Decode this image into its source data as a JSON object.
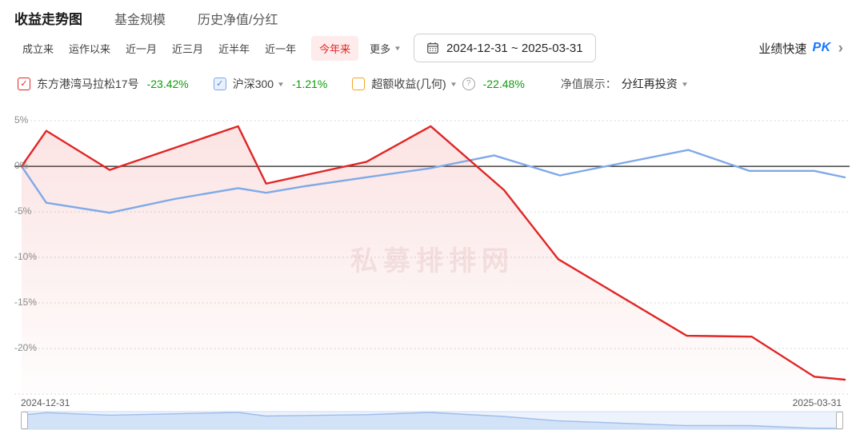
{
  "header": {
    "tabs": [
      {
        "label": "收益走势图",
        "active": true
      },
      {
        "label": "基金规模",
        "active": false
      },
      {
        "label": "历史净值/分红",
        "active": false
      }
    ]
  },
  "toolbar": {
    "periods": [
      {
        "label": "成立来",
        "active": false
      },
      {
        "label": "运作以来",
        "active": false
      },
      {
        "label": "近一月",
        "active": false
      },
      {
        "label": "近三月",
        "active": false
      },
      {
        "label": "近半年",
        "active": false
      },
      {
        "label": "近一年",
        "active": false
      },
      {
        "label": "今年来",
        "active": true
      }
    ],
    "more_label": "更多",
    "date_range": "2024-12-31 ~ 2025-03-31",
    "pk_prefix": "业绩快速",
    "pk_label": "PK",
    "pk_arrow": "›"
  },
  "legend": {
    "items": [
      {
        "label": "东方港湾马拉松17号",
        "value": "-23.42%",
        "checked": true,
        "color": "#e02626",
        "has_dropdown": false,
        "has_help": false
      },
      {
        "label": "沪深300",
        "value": "-1.21%",
        "checked": true,
        "color": "#7fa9e8",
        "has_dropdown": true,
        "has_help": false
      },
      {
        "label": "超额收益(几何)",
        "value": "-22.48%",
        "checked": false,
        "color": "#f5a623",
        "has_dropdown": true,
        "has_help": true
      }
    ],
    "value_color": "#0b9e0b",
    "nav_display_label": "净值展示：",
    "nav_display_value": "分红再投资"
  },
  "watermark": "私募排排网",
  "chart_data": {
    "type": "line",
    "x_axis": {
      "start_label": "2024-12-31",
      "end_label": "2025-03-31"
    },
    "y_ticks": [
      {
        "label": "5%",
        "value": 5
      },
      {
        "label": "0%",
        "value": 0
      },
      {
        "label": "-5%",
        "value": -5
      },
      {
        "label": "-10%",
        "value": -10
      },
      {
        "label": "-15%",
        "value": -15
      },
      {
        "label": "-20%",
        "value": -20
      }
    ],
    "ylim": [
      -25,
      5.8
    ],
    "grid": "dashed horizontal, solid black zero line",
    "legend_position": "top",
    "point_x_format": "fraction of date range 2024-12-31 to 2025-03-31",
    "point_y_format": "cumulative return percent",
    "series": [
      {
        "name": "东方港湾马拉松17号",
        "color": "#e02626",
        "final_value_pct": -23.42,
        "area": true,
        "points": [
          [
            0,
            0
          ],
          [
            0.03,
            3.9
          ],
          [
            0.107,
            -0.4
          ],
          [
            0.263,
            4.4
          ],
          [
            0.297,
            -1.9
          ],
          [
            0.419,
            0.5
          ],
          [
            0.497,
            4.4
          ],
          [
            0.586,
            -2.6
          ],
          [
            0.652,
            -10.2
          ],
          [
            0.808,
            -18.6
          ],
          [
            0.887,
            -18.7
          ],
          [
            0.963,
            -23.1
          ],
          [
            1,
            -23.42
          ]
        ]
      },
      {
        "name": "沪深300",
        "color": "#7fa9e8",
        "final_value_pct": -1.21,
        "area": false,
        "points": [
          [
            0,
            0
          ],
          [
            0.03,
            -4
          ],
          [
            0.107,
            -5.1
          ],
          [
            0.185,
            -3.6
          ],
          [
            0.263,
            -2.4
          ],
          [
            0.297,
            -2.9
          ],
          [
            0.343,
            -2.2
          ],
          [
            0.419,
            -1.2
          ],
          [
            0.497,
            -0.2
          ],
          [
            0.574,
            1.2
          ],
          [
            0.654,
            -1
          ],
          [
            0.81,
            1.8
          ],
          [
            0.884,
            -0.5
          ],
          [
            0.963,
            -0.5
          ],
          [
            1,
            -1.21
          ]
        ]
      }
    ]
  }
}
